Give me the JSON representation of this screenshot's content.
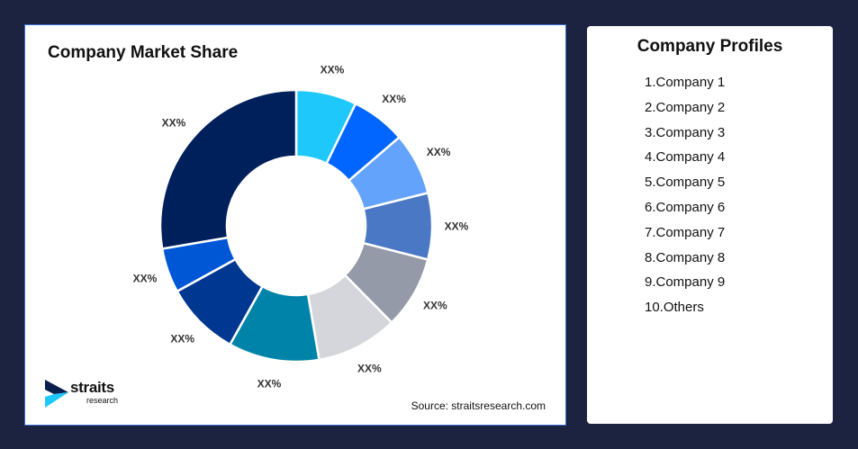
{
  "chart_data": {
    "type": "pie",
    "variant": "donut",
    "title": "Company Market Share",
    "labels": [
      "XX%",
      "XX%",
      "XX%",
      "XX%",
      "XX%",
      "XX%",
      "XX%",
      "XX%",
      "XX%",
      "XX%"
    ],
    "values": [
      7.2,
      6.5,
      7.4,
      7.9,
      8.6,
      9.7,
      10.8,
      8.9,
      5.3,
      27.7
    ],
    "colors": [
      "#1ec8fa",
      "#0066ff",
      "#63a3fb",
      "#4a78c4",
      "#949aa8",
      "#d5d6db",
      "#0083a8",
      "#003790",
      "#0057d6",
      "#00205c"
    ],
    "legend": "none"
  },
  "source": "Source: straitsresearch.com",
  "logo": {
    "name": "straits",
    "sub": "research"
  },
  "profiles": {
    "title": "Company Profiles",
    "items": [
      "1.Company 1",
      "2.Company 2",
      "3.Company 3",
      "4.Company 4",
      "5.Company 5",
      "6.Company 6",
      "7.Company 7",
      "8.Company 8",
      "9.Company 9",
      "10.Others"
    ]
  }
}
